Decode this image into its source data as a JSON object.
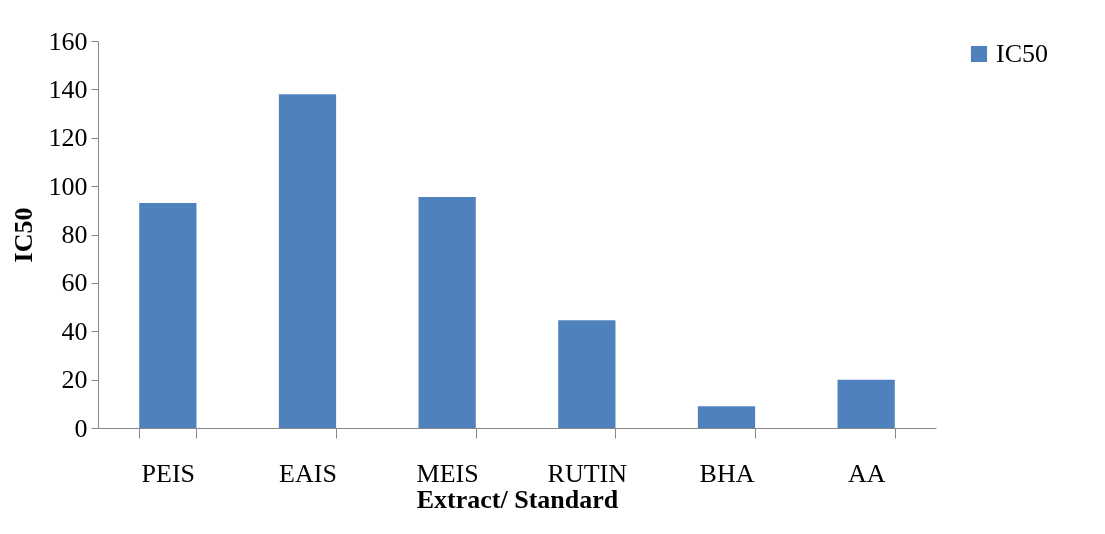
{
  "chart_data": {
    "type": "bar",
    "xlabel": "Extract/ Standard",
    "ylabel": "IC50",
    "categories": [
      "PEIS",
      "EAIS",
      "MEIS",
      "RUTIN",
      "BHA",
      "AA"
    ],
    "series": [
      {
        "name": "IC50",
        "color": "#4f81bd",
        "values": [
          93,
          138,
          95.5,
          44.5,
          9,
          20
        ]
      }
    ],
    "ylim": [
      0,
      160
    ],
    "yticks": [
      0,
      20,
      40,
      60,
      80,
      100,
      120,
      140,
      160
    ],
    "legend": "right"
  }
}
